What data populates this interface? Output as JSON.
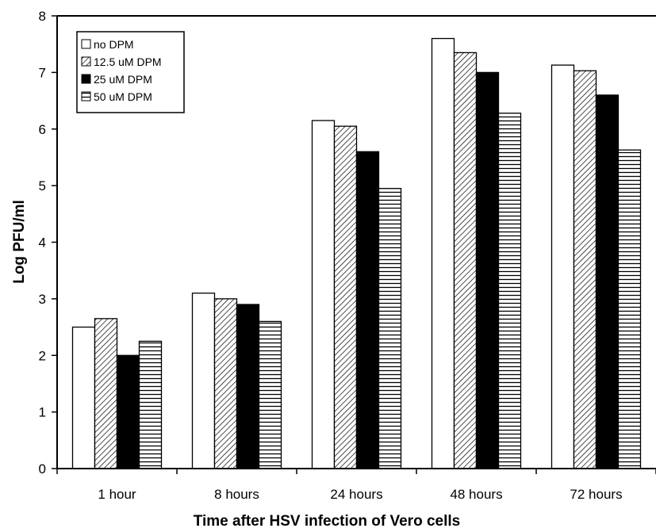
{
  "chart_data": {
    "type": "bar",
    "title": "",
    "xlabel": "Time after HSV infection of Vero cells",
    "ylabel": "Log PFU/ml",
    "ylim": [
      0,
      8
    ],
    "yticks": [
      "0",
      "1",
      "2",
      "3",
      "4",
      "5",
      "6",
      "7",
      "8"
    ],
    "categories": [
      "1 hour",
      "8 hours",
      "24 hours",
      "48 hours",
      "72 hours"
    ],
    "series": [
      {
        "name": "no DPM",
        "fill": "white",
        "values": [
          2.5,
          3.1,
          6.15,
          7.6,
          7.13
        ]
      },
      {
        "name": "12.5 uM DPM",
        "fill": "diagonal",
        "values": [
          2.65,
          3.0,
          6.05,
          7.35,
          7.03
        ]
      },
      {
        "name": "25 uM DPM",
        "fill": "black",
        "values": [
          2.0,
          2.9,
          5.6,
          7.0,
          6.6
        ]
      },
      {
        "name": "50 uM DPM",
        "fill": "horizontal",
        "values": [
          2.25,
          2.6,
          4.95,
          6.28,
          5.63
        ]
      }
    ],
    "legend_position": "top-left",
    "grid": false
  }
}
